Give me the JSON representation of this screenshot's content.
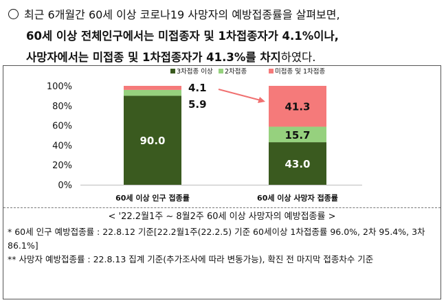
{
  "intro": {
    "line1": "최근 6개월간 60세 이상 코로나19 사망자의 예방접종률을 살펴보면,",
    "line2": "60세 이상 전체인구에서는 미접종자 및 1차접종자가 4.1%이나,",
    "line3_bold": "사망자에서는 미접종 및 1차접종자가 41.3%를 차지",
    "line3_tail": "하였다."
  },
  "chart_data": {
    "type": "bar",
    "stacked": true,
    "categories": [
      "60세 이상 인구 접종률",
      "60세 이상 사망자 접종률"
    ],
    "series": [
      {
        "name": "3차접종 이상",
        "values": [
          90.0,
          43.0
        ],
        "color": "#3a5a1f",
        "labels": [
          "90.0",
          "43.0"
        ]
      },
      {
        "name": "2차접종",
        "values": [
          5.9,
          15.7
        ],
        "color": "#96d17e",
        "labels": [
          "5.9",
          "15.7"
        ]
      },
      {
        "name": "미접종 및 1차접종",
        "values": [
          4.1,
          41.3
        ],
        "color": "#f57a7a",
        "labels": [
          "4.1",
          "41.3"
        ]
      }
    ],
    "yticks": [
      "0%",
      "20%",
      "40%",
      "60%",
      "80%",
      "100%"
    ],
    "ylim": [
      0,
      100
    ],
    "legend_position": "top-right",
    "grid": false
  },
  "notes": {
    "caption": "< '22.2월1주 ~ 8월2주 60세 이상 사망자의 예방접종률 >",
    "note1": "* 60세 인구 예방접종률 : 22.8.12 기준[22.2월1주(22.2.5) 기준 60세이상 1차접종률 96.0%, 2차 95.4%, 3차 86.1%]",
    "note2": "** 사망자 예방접종률 : 22.8.13 집계 기준(추가조사에 따라 변동가능), 확진 전 마지막 접종차수 기준"
  }
}
